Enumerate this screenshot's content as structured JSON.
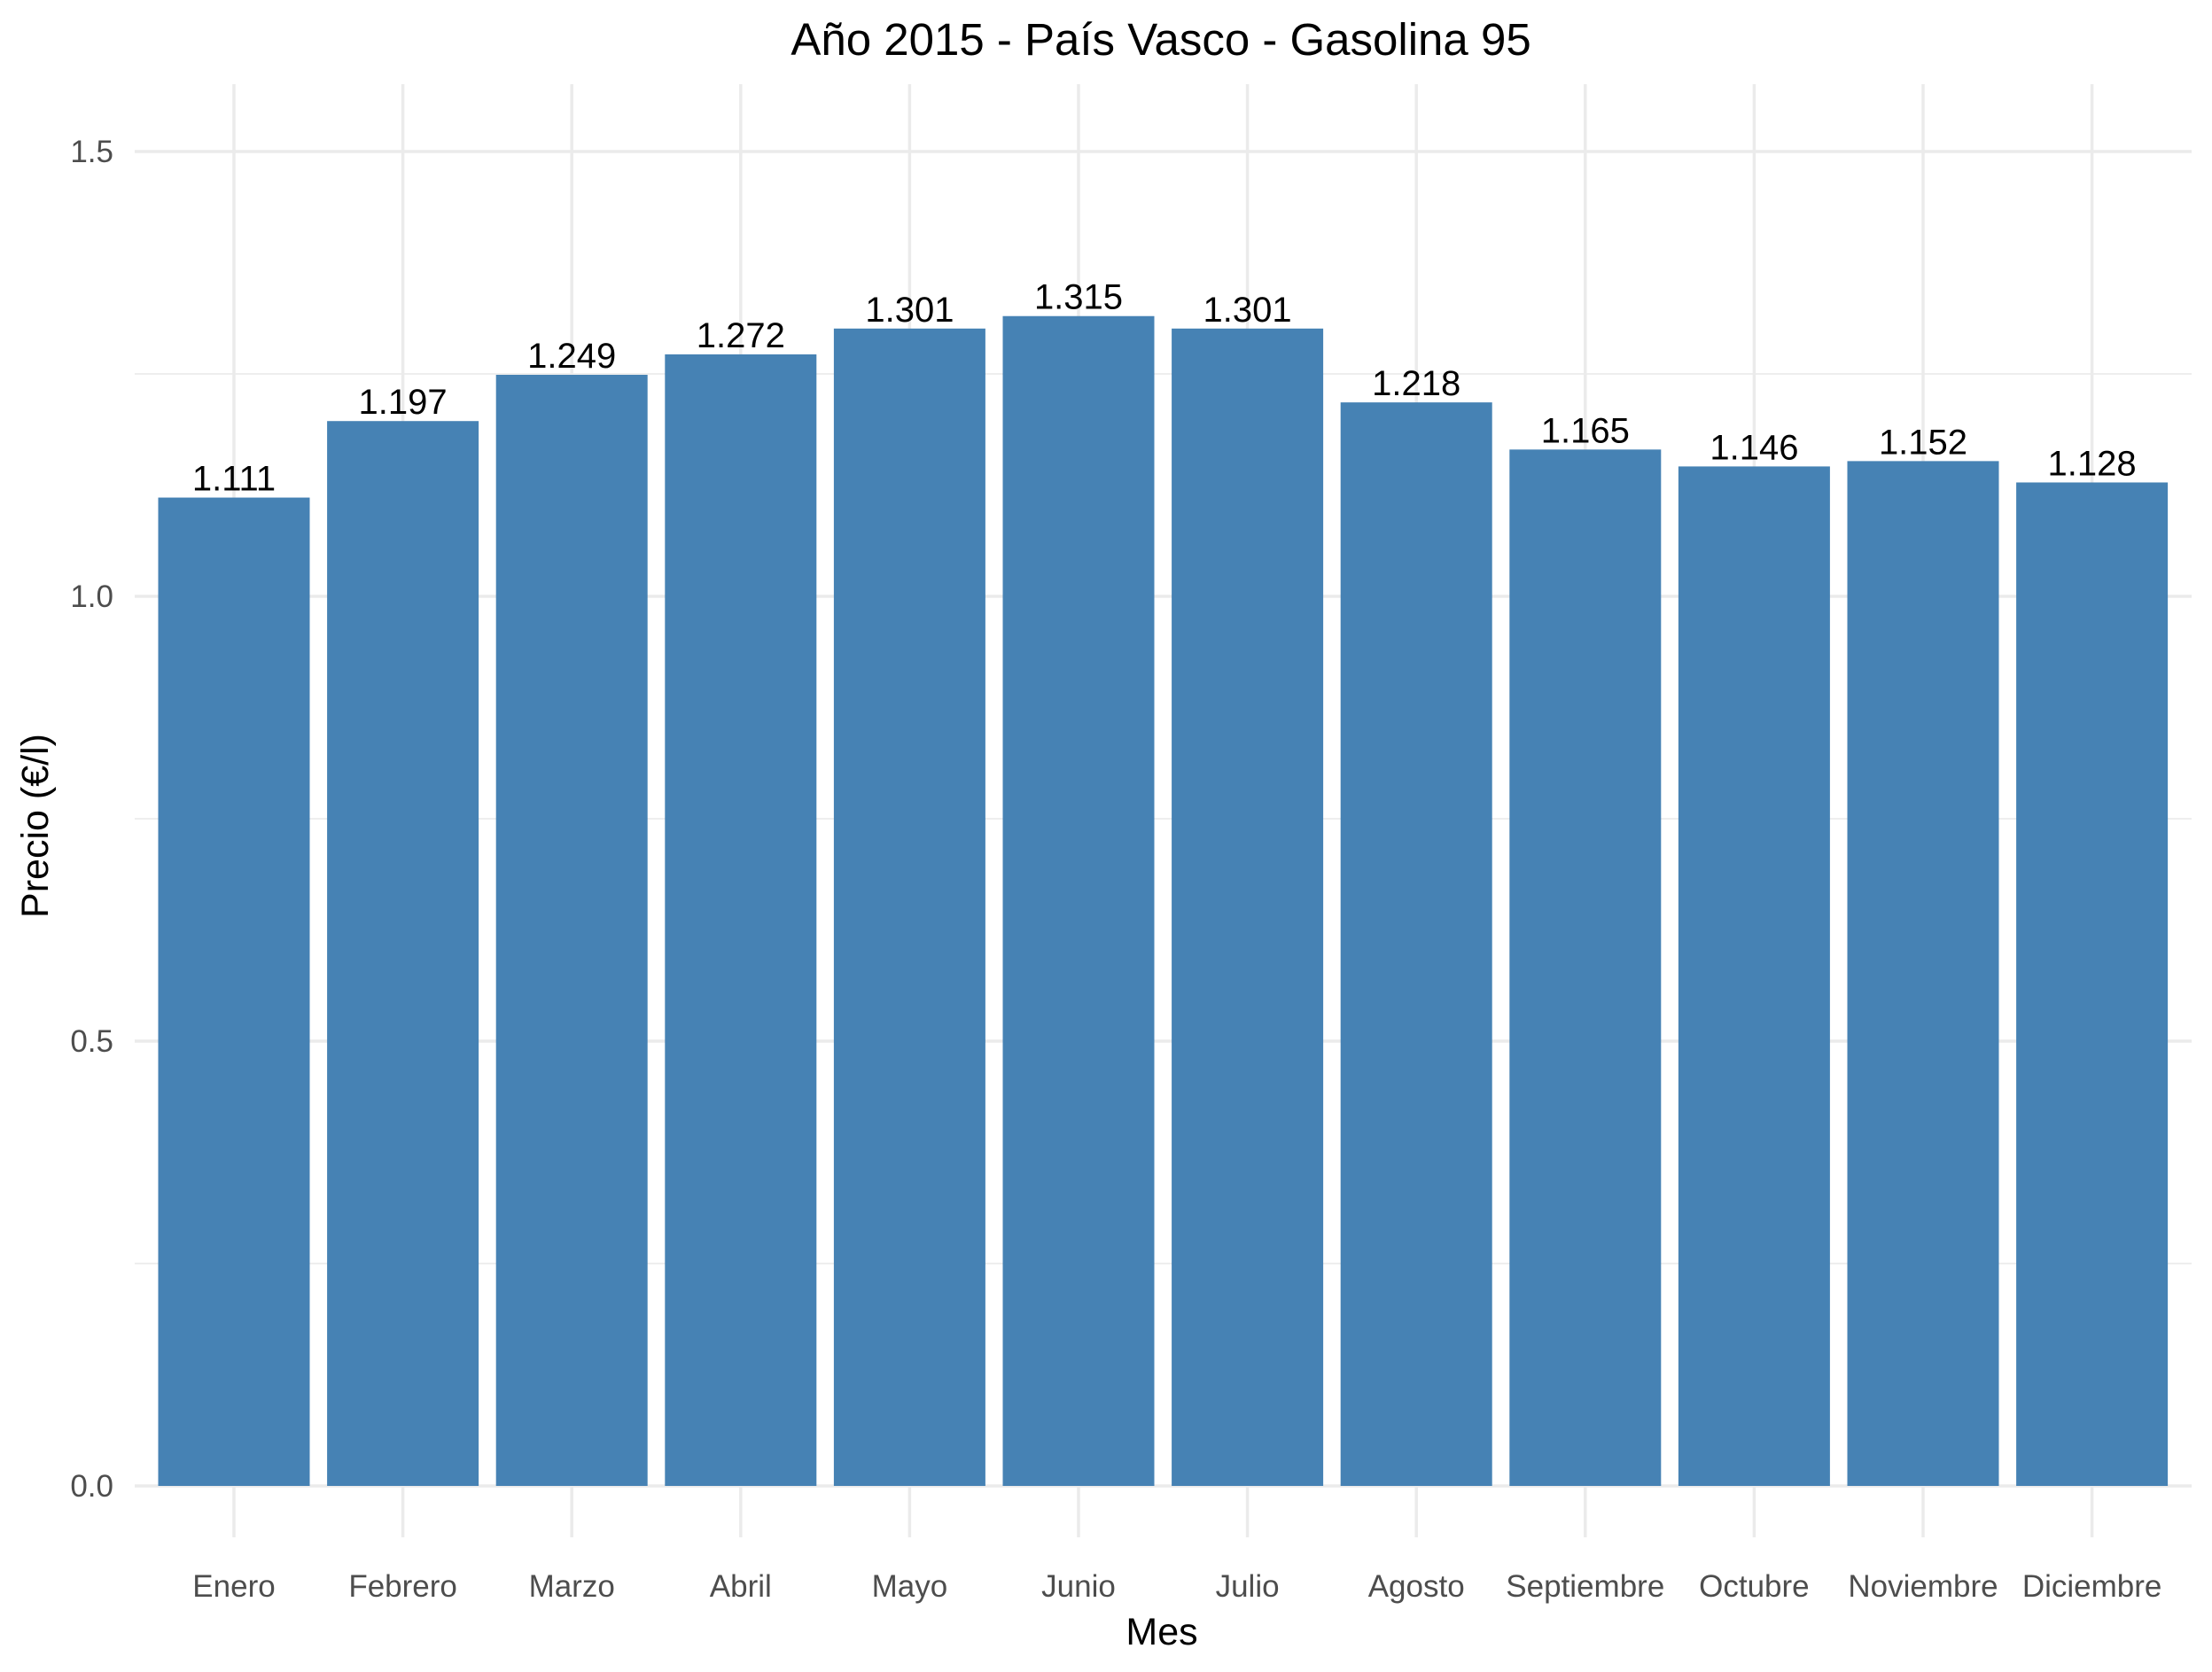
{
  "chart_data": {
    "type": "bar",
    "title": "Año 2015 - País Vasco - Gasolina 95",
    "xlabel": "Mes",
    "ylabel": "Precio (€/l)",
    "categories": [
      "Enero",
      "Febrero",
      "Marzo",
      "Abril",
      "Mayo",
      "Junio",
      "Julio",
      "Agosto",
      "Septiembre",
      "Octubre",
      "Noviembre",
      "Diciembre"
    ],
    "values": [
      1.111,
      1.197,
      1.249,
      1.272,
      1.301,
      1.315,
      1.301,
      1.218,
      1.165,
      1.146,
      1.152,
      1.128
    ],
    "value_labels": [
      "1.111",
      "1.197",
      "1.249",
      "1.272",
      "1.301",
      "1.315",
      "1.301",
      "1.218",
      "1.165",
      "1.146",
      "1.152",
      "1.128"
    ],
    "y_ticks": [
      0.0,
      0.5,
      1.0,
      1.5
    ],
    "y_tick_labels": [
      "0.0",
      "0.5",
      "1.0",
      "1.5"
    ],
    "ylim": [
      0,
      1.5
    ],
    "grid": true,
    "legend": "none",
    "bar_color": "#4682b4"
  }
}
